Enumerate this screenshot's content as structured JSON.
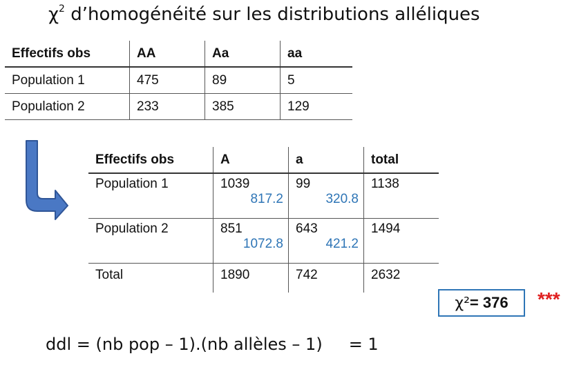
{
  "title": {
    "chi_symbol": "χ",
    "superscript": "2",
    "text": " d’homogénéité sur les distributions alléliques"
  },
  "table_genotypes": {
    "headers": [
      "Effectifs obs",
      "AA",
      "Aa",
      "aa"
    ],
    "rows": [
      [
        "Population 1",
        "475",
        "89",
        "5"
      ],
      [
        "Population 2",
        "233",
        "385",
        "129"
      ]
    ]
  },
  "table_alleles": {
    "headers": [
      "Effectifs obs",
      "A",
      "a",
      "total"
    ],
    "rows": [
      {
        "label": "Population 1",
        "A": "1039",
        "A_expected": "817.2",
        "a": "99",
        "a_expected": "320.8",
        "total": "1138"
      },
      {
        "label": "Population 2",
        "A": "851",
        "A_expected": "1072.8",
        "a": "643",
        "a_expected": "421.2",
        "total": "1494"
      }
    ],
    "total_row": [
      "Total",
      "1890",
      "742",
      "2632"
    ]
  },
  "result": {
    "chi_label": "χ²",
    "chi_value": " = 376",
    "stars": "***"
  },
  "ddl": {
    "formula": "ddl = (nb pop – 1).(nb allèles – 1)",
    "result": "= 1"
  },
  "colors": {
    "expected_values": "#2e75b6",
    "box_border": "#2e75b6",
    "stars": "#e02020",
    "arrow_fill": "#4a78c4"
  }
}
